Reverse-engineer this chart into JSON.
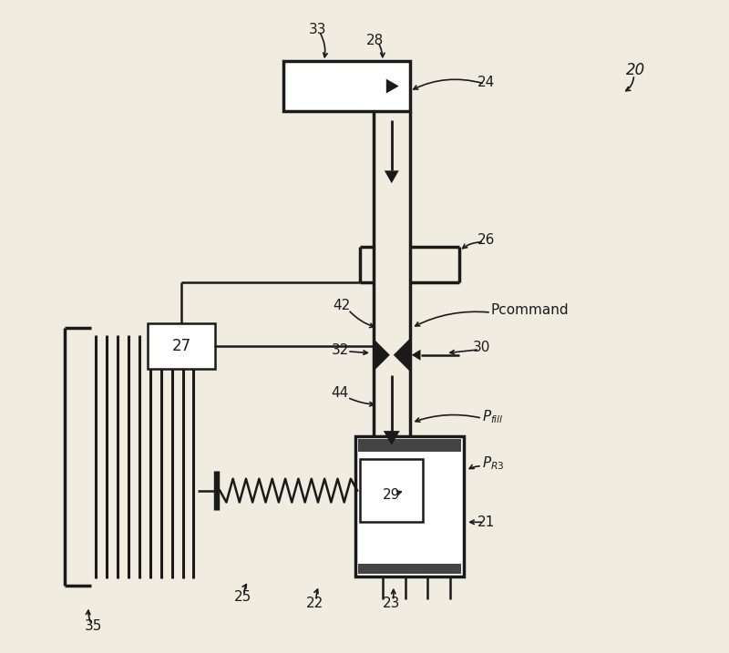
{
  "bg_color": "#f0ece0",
  "line_color": "#1a1a1a",
  "figure_width": 8.0,
  "figure_height": 7.17,
  "dpi": 100
}
